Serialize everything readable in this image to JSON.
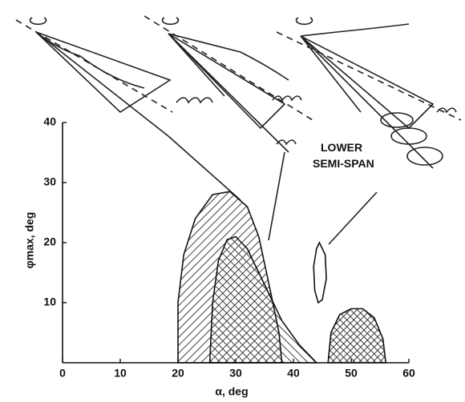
{
  "chart_data": {
    "type": "region",
    "xlabel": "α, deg",
    "ylabel": "φmax, deg",
    "annotation": "LOWER SEMI-SPAN",
    "xlim": [
      0,
      60
    ],
    "ylim": [
      0,
      40
    ],
    "xticks": [
      0,
      10,
      20,
      30,
      40,
      50,
      60
    ],
    "yticks": [
      10,
      20,
      30,
      40
    ],
    "regions": [
      {
        "pattern": "hatch-right",
        "x": [
          20,
          20,
          21,
          23,
          26,
          29,
          32,
          34,
          36,
          37.5,
          38
        ],
        "values": [
          0,
          10,
          18,
          24,
          28,
          28.5,
          26,
          21,
          12,
          5,
          0
        ]
      },
      {
        "pattern": "hatch-left",
        "x": [
          25.5,
          26,
          27,
          28.5,
          30,
          32,
          35,
          38,
          41,
          44
        ],
        "values": [
          0,
          10,
          17,
          20.5,
          21,
          19,
          13,
          7,
          3,
          0
        ]
      },
      {
        "pattern": "cross-hatch",
        "x": [
          46,
          46.5,
          48,
          50,
          52,
          54,
          55.5,
          56
        ],
        "values": [
          0,
          5,
          8,
          9,
          9,
          7.5,
          4,
          0
        ]
      },
      {
        "pattern": "open",
        "x": [
          44.5,
          45.5,
          45.7,
          45,
          44.3,
          43.7,
          43.5,
          44
        ],
        "values": [
          20,
          18,
          14,
          10.5,
          10,
          12,
          16,
          19
        ]
      }
    ]
  }
}
